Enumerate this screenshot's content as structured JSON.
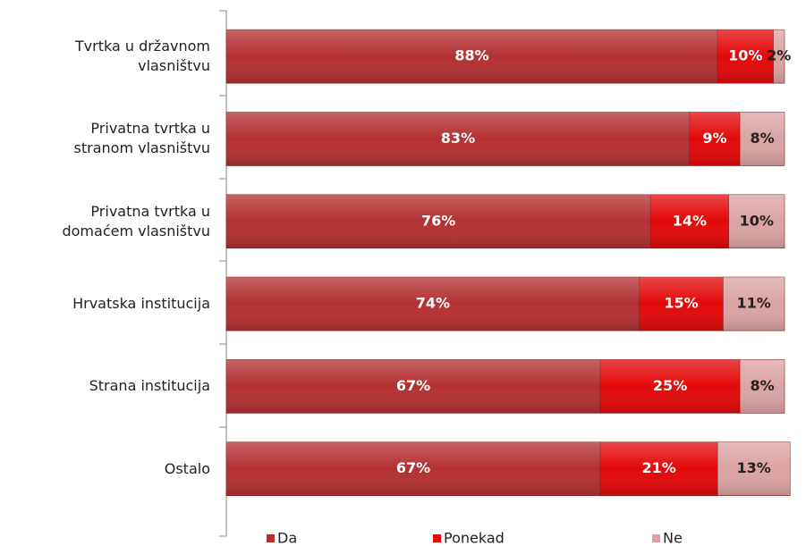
{
  "chart_data": {
    "type": "stacked-bar-horizontal",
    "categories": [
      "Tvrtka u državnom\nvlasništvu",
      "Privatna tvrtka u\nstranom vlasništvu",
      "Privatna tvrtka u\ndomaćem vlasništvu",
      "Hrvatska institucija",
      "Strana institucija",
      "Ostalo"
    ],
    "xlim": [
      0,
      100
    ],
    "legend": "bottom",
    "series": [
      {
        "name": "Da",
        "color": "#b33030",
        "values": [
          88,
          83,
          76,
          74,
          67,
          67
        ],
        "value_labels": [
          "88%",
          "83%",
          "76%",
          "74%",
          "67%",
          "67%"
        ]
      },
      {
        "name": "Ponekad",
        "color": "#e30808",
        "values": [
          10,
          9,
          14,
          15,
          25,
          21
        ],
        "value_labels": [
          "10%",
          "9%",
          "14%",
          "15%",
          "25%",
          "21%"
        ]
      },
      {
        "name": "Ne",
        "color": "#dba3a3",
        "values": [
          2,
          8,
          10,
          11,
          8,
          13
        ],
        "value_labels": [
          "2%",
          "8%",
          "10%",
          "11%",
          "8%",
          "13%"
        ]
      }
    ]
  }
}
